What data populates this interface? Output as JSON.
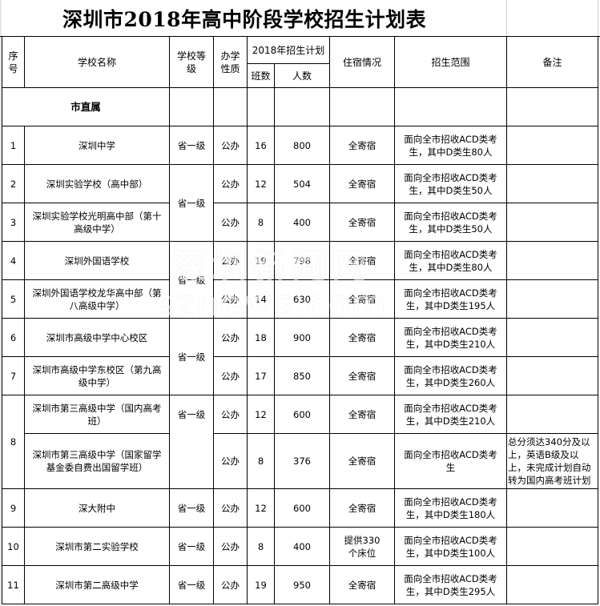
{
  "title": "深圳市2018年高中阶段学校招生计划表",
  "headers": {
    "no": "序号",
    "name": "学校名称",
    "level": "学校等级",
    "type": "办学性质",
    "plan": "2018年招生计划",
    "classes": "班数",
    "students": "人数",
    "dorm": "住宿情况",
    "scope": "招生范围",
    "remark": "备注"
  },
  "group_label": "市直属",
  "rows": [
    {
      "no": "1",
      "name": "深圳中学",
      "level": "省一级",
      "type": "公办",
      "classes": "16",
      "students": "800",
      "dorm": "全寄宿",
      "scope": "面向全市招收ACD类考生，其中D类生80人",
      "remark": ""
    },
    {
      "no": "2",
      "name": "深圳实验学校（高中部）",
      "level": "省一级",
      "type": "公办",
      "classes": "12",
      "students": "504",
      "dorm": "全寄宿",
      "scope": "面向全市招收ACD类考生，其中D类生50人",
      "remark": ""
    },
    {
      "no": "3",
      "name": "深圳实验学校光明高中部（第十高级中学）",
      "level": null,
      "type": "公办",
      "classes": "8",
      "students": "400",
      "dorm": "全寄宿",
      "scope": "面向全市招收ACD类考生，其中D类生50人",
      "remark": ""
    },
    {
      "no": "4",
      "name": "深圳外国语学校",
      "level": "省一级",
      "type": "公办",
      "classes": "19",
      "students": "798",
      "dorm": "全寄宿",
      "scope": "面向全市招收ACD类考生，其中D类生80人",
      "remark": ""
    },
    {
      "no": "5",
      "name": "深圳外国语学校龙华高中部（第八高级中学）",
      "level": null,
      "type": "公办",
      "classes": "14",
      "students": "630",
      "dorm": "全寄宿",
      "scope": "面向全市招收ACD类考生，其中D类生195人",
      "remark": ""
    },
    {
      "no": "6",
      "name": "深圳市高级中学中心校区",
      "level": "省一级",
      "type": "公办",
      "classes": "18",
      "students": "900",
      "dorm": "全寄宿",
      "scope": "面向全市招收ACD类考生，其中D类生210人",
      "remark": ""
    },
    {
      "no": "7",
      "name": "深圳市高级中学东校区（第九高级中学）",
      "level": null,
      "type": "公办",
      "classes": "17",
      "students": "850",
      "dorm": "全寄宿",
      "scope": "面向全市招收ACD类考生，其中D类生260人",
      "remark": ""
    },
    {
      "no": "8",
      "name": "深圳市第三高级中学（国内高考班）",
      "level": "省一级",
      "type": "公办",
      "classes": "12",
      "students": "600",
      "dorm": "全寄宿",
      "scope": "面向全市招收ACD类考生，其中D类生210人",
      "remark": ""
    },
    {
      "no": null,
      "name": "深圳市第三高级中学（国家留学基金委自费出国留学班）",
      "level": null,
      "type": "公办",
      "classes": "8",
      "students": "376",
      "dorm": "全寄宿",
      "scope": "面向全市招收ACD类考生",
      "remark": "总分须达340分及以上，英语B级及以上，未完成计划自动转为国内高考班计划"
    },
    {
      "no": "9",
      "name": "深大附中",
      "level": "省一级",
      "type": "公办",
      "classes": "12",
      "students": "600",
      "dorm": "全寄宿",
      "scope": "面向全市招收ACD类考生，其中D类生180人",
      "remark": ""
    },
    {
      "no": "10",
      "name": "深圳市第二实验学校",
      "level": "省一级",
      "type": "公办",
      "classes": "8",
      "students": "400",
      "dorm": "提供330个床位",
      "scope": "面向全市招收ACD类考生，其中D类生100人",
      "remark": ""
    },
    {
      "no": "11",
      "name": "深圳市第二高级中学",
      "level": "省一级",
      "type": "公办",
      "classes": "19",
      "students": "950",
      "dorm": "全寄宿",
      "scope": "面向全市招收ACD类考生，其中D类生295人",
      "remark": ""
    }
  ],
  "watermark": {
    "line1": "深圳新闻网",
    "line2": "sznews.com"
  }
}
